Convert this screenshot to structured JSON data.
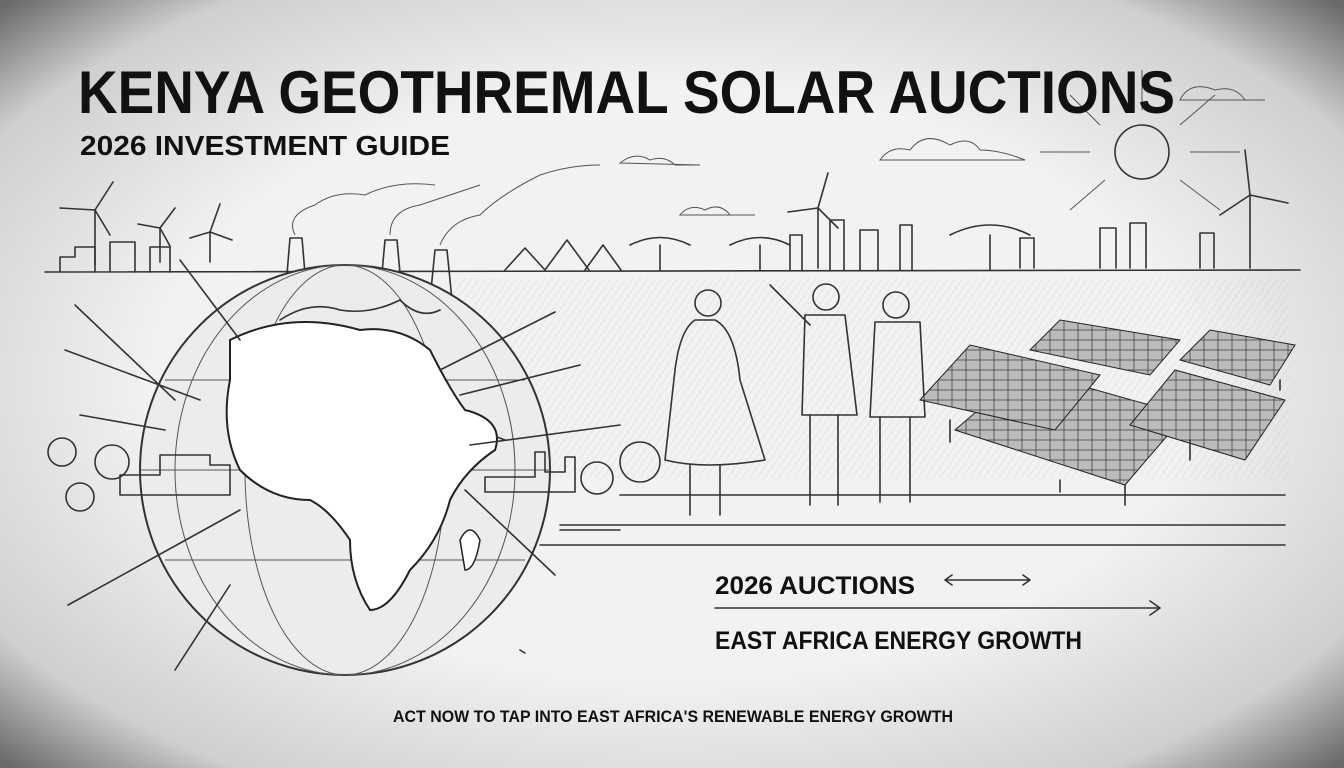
{
  "header": {
    "title": "KENYA GEOTHREMAL SOLAR AUCTIONS",
    "subtitle": "2026 INVESTMENT GUIDE"
  },
  "callouts": [
    "2026 AUCTIONS",
    "EAST AFRICA ENERGY GROWTH"
  ],
  "footer": {
    "tagline": "ACT NOW TO TAP INTO EAST AFRICA'S RENEWABLE ENERGY GROWTH"
  }
}
